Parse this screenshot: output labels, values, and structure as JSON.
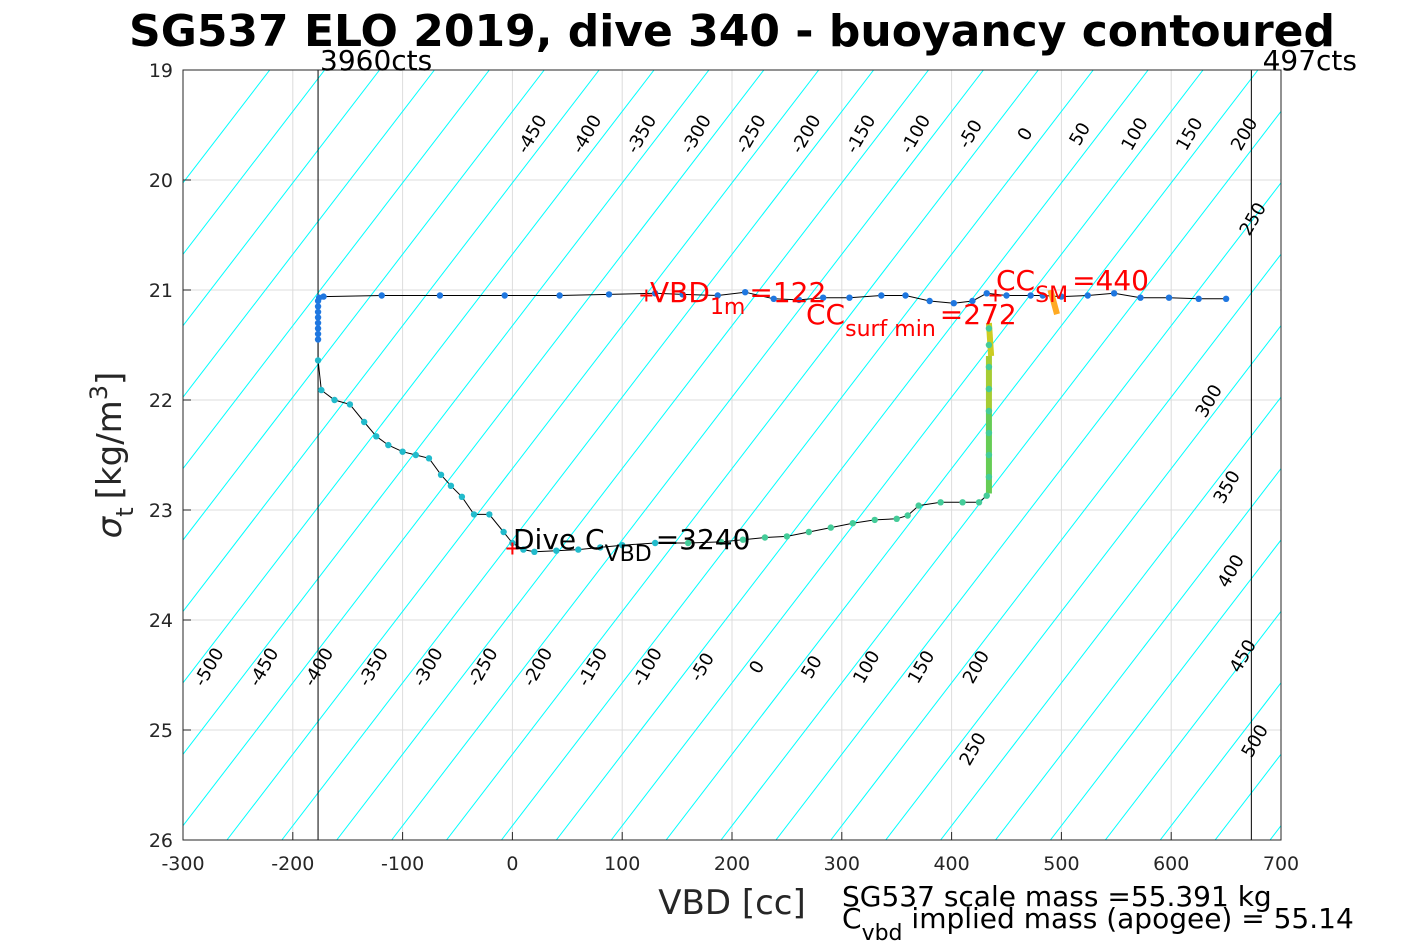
{
  "chart_data": {
    "type": "scatter",
    "title": "SG537 ELO 2019, dive 340 - buoyancy contoured",
    "xlabel": "VBD [cc]",
    "ylabel": {
      "sigma": "σ",
      "sub": "t",
      "units": "[kg/m",
      "sup": "3",
      "close": "]"
    },
    "xlim": [
      -300,
      700
    ],
    "ylim": [
      19,
      26
    ],
    "y_reversed": true,
    "grid": true,
    "xticks": [
      -300,
      -200,
      -100,
      0,
      100,
      200,
      300,
      400,
      500,
      600,
      700
    ],
    "yticks": [
      19,
      20,
      21,
      22,
      23,
      24,
      25,
      26
    ],
    "count_lines": [
      {
        "x": -177,
        "label": "3960cts"
      },
      {
        "x": 673,
        "label": "497cts"
      }
    ],
    "buoyancy_contour_labels_top": [
      "-450",
      "-400",
      "-350",
      "-300",
      "-250",
      "-200",
      "-150",
      "-100",
      "-50",
      "0",
      "50",
      "100",
      "150",
      "200"
    ],
    "buoyancy_contour_labels_bottom": [
      "-500",
      "-450",
      "-400",
      "-350",
      "-300",
      "-250",
      "-200",
      "-150",
      "-100",
      "-50",
      "0",
      "50",
      "100",
      "150",
      "200"
    ],
    "buoyancy_contour_labels_right": [
      "250",
      "300",
      "350",
      "400",
      "450",
      "500"
    ],
    "buoyancy_contour_label_mid": "250",
    "colors": {
      "contour": "#00ffff",
      "zero_line": "#0000cc",
      "highlight_line": "#cc33cc",
      "annotation": "#ff0000",
      "descent_dots": "#1f77e0",
      "grid": "#dcdcdc"
    },
    "annotations": {
      "vbd_1m": {
        "base": "VBD",
        "sub": "1m",
        "value": "=122",
        "x": 122,
        "y": 21.05
      },
      "cc_sm": {
        "base": "CC",
        "sub": "SM",
        "value": "=440",
        "x": 440,
        "y": 21.05
      },
      "cc_surf_min": {
        "base": "CC",
        "sub": "surf min",
        "value": "=272",
        "x": 272,
        "y": 21.1
      },
      "dive_c_vbd": {
        "base": "Dive C",
        "sub": "VBD",
        "value": "=3240",
        "x": 0,
        "y": 23.35
      }
    },
    "footer": {
      "scale_mass": "SG537 scale mass =55.391 kg",
      "implied_base": "C",
      "implied_sub": "vbd",
      "implied_text": " implied mass (apogee) = 55.14"
    },
    "series": [
      {
        "points": [
          [
            650,
            21.08
          ],
          [
            625,
            21.08
          ],
          [
            598,
            21.07
          ],
          [
            572,
            21.07
          ],
          [
            548,
            21.03
          ],
          [
            524,
            21.05
          ],
          [
            500,
            21.06
          ],
          [
            483,
            21.05
          ],
          [
            472,
            21.05
          ],
          [
            450,
            21.05
          ],
          [
            432,
            21.03
          ],
          [
            419,
            21.1
          ],
          [
            402,
            21.12
          ],
          [
            380,
            21.1
          ],
          [
            358,
            21.05
          ],
          [
            336,
            21.05
          ],
          [
            307,
            21.07
          ],
          [
            283,
            21.07
          ],
          [
            261,
            21.09
          ],
          [
            238,
            21.08
          ],
          [
            212,
            21.02
          ],
          [
            187,
            21.05
          ],
          [
            155,
            21.04
          ],
          [
            130,
            21.03
          ],
          [
            88,
            21.04
          ],
          [
            43,
            21.05
          ],
          [
            -7,
            21.05
          ],
          [
            -66,
            21.05
          ],
          [
            -119,
            21.05
          ],
          [
            -172,
            21.06
          ],
          [
            -176,
            21.07
          ],
          [
            -177,
            21.1
          ],
          [
            -177,
            21.15
          ],
          [
            -177,
            21.2
          ],
          [
            -177,
            21.25
          ],
          [
            -177,
            21.3
          ],
          [
            -177,
            21.35
          ],
          [
            -177,
            21.4
          ],
          [
            -177,
            21.45
          ]
        ]
      },
      {
        "points": [
          [
            -177,
            21.64
          ],
          [
            -174,
            21.91
          ],
          [
            -162,
            22.0
          ],
          [
            -148,
            22.04
          ],
          [
            -135,
            22.2
          ],
          [
            -124,
            22.33
          ],
          [
            -113,
            22.41
          ],
          [
            -100,
            22.47
          ],
          [
            -88,
            22.5
          ],
          [
            -76,
            22.53
          ],
          [
            -65,
            22.68
          ],
          [
            -56,
            22.78
          ],
          [
            -46,
            22.88
          ],
          [
            -35,
            23.04
          ],
          [
            -21,
            23.04
          ],
          [
            -8,
            23.2
          ],
          [
            0,
            23.3
          ],
          [
            10,
            23.36
          ],
          [
            20,
            23.38
          ],
          [
            40,
            23.37
          ],
          [
            60,
            23.36
          ],
          [
            80,
            23.34
          ],
          [
            100,
            23.32
          ],
          [
            130,
            23.3
          ],
          [
            160,
            23.3
          ],
          [
            190,
            23.29
          ],
          [
            210,
            23.27
          ],
          [
            230,
            23.25
          ],
          [
            250,
            23.24
          ],
          [
            270,
            23.2
          ],
          [
            290,
            23.16
          ],
          [
            310,
            23.12
          ],
          [
            330,
            23.09
          ],
          [
            350,
            23.08
          ],
          [
            360,
            23.05
          ],
          [
            370,
            22.96
          ],
          [
            390,
            22.93
          ],
          [
            410,
            22.93
          ],
          [
            425,
            22.93
          ],
          [
            432,
            22.87
          ],
          [
            434,
            22.7
          ],
          [
            434,
            22.5
          ],
          [
            434,
            22.3
          ],
          [
            434,
            22.1
          ],
          [
            434,
            21.9
          ],
          [
            434,
            21.7
          ],
          [
            434,
            21.5
          ],
          [
            434,
            21.35
          ]
        ]
      }
    ],
    "trail_segments": [
      {
        "x": [
          434,
          434
        ],
        "y": [
          22.1,
          22.85
        ],
        "color": "#66cc55"
      },
      {
        "x": [
          434,
          434
        ],
        "y": [
          21.6,
          22.1
        ],
        "color": "#a6cc33"
      },
      {
        "x": [
          434,
          436
        ],
        "y": [
          21.3,
          21.6
        ],
        "color": "#cccc22"
      },
      {
        "x": [
          490,
          496
        ],
        "y": [
          21.0,
          21.22
        ],
        "color": "#ffaa22"
      }
    ],
    "markers": [
      {
        "x": 122,
        "y": 21.05,
        "symbol": "+",
        "color": "#ff0000"
      },
      {
        "x": 440,
        "y": 21.05,
        "symbol": "+",
        "color": "#ff0000"
      },
      {
        "x": 0,
        "y": 23.35,
        "symbol": "+",
        "color": "#ff0000"
      }
    ]
  }
}
